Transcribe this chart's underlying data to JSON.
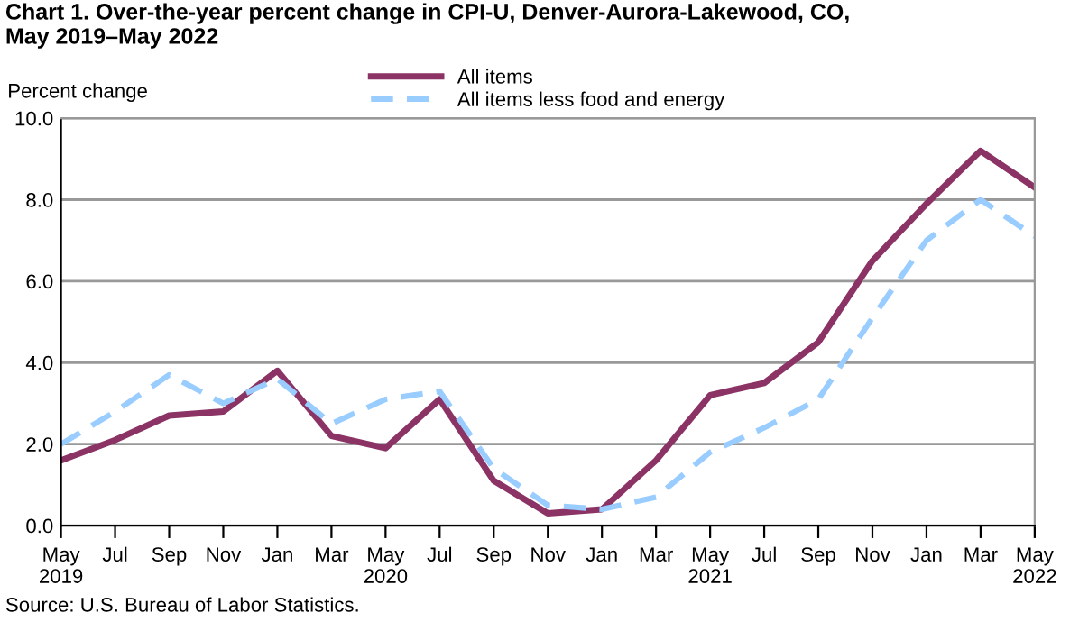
{
  "chart_data": {
    "type": "line",
    "title": "Chart 1. Over-the-year percent change in CPI-U, Denver-Aurora-Lakewood, CO,\nMay 2019–May 2022",
    "ylabel": "Percent change",
    "categories": [
      "May\n2019",
      "Jul",
      "Sep",
      "Nov",
      "Jan",
      "Mar",
      "May\n2020",
      "Jul",
      "Sep",
      "Nov",
      "Jan",
      "Mar",
      "May\n2021",
      "Jul",
      "Sep",
      "Nov",
      "Jan",
      "Mar",
      "May\n2022"
    ],
    "series": [
      {
        "name": "All items",
        "color": "#8b3365",
        "line_style": "solid",
        "values": [
          1.6,
          2.1,
          2.7,
          2.8,
          3.8,
          2.2,
          1.9,
          3.1,
          1.1,
          0.3,
          0.4,
          1.6,
          3.2,
          3.5,
          4.5,
          6.5,
          7.9,
          9.2,
          8.3
        ]
      },
      {
        "name": "All items less food and energy",
        "color": "#99ccff",
        "line_style": "dashed",
        "values": [
          2.0,
          2.8,
          3.7,
          3.0,
          3.6,
          2.5,
          3.1,
          3.3,
          1.4,
          0.5,
          0.4,
          0.7,
          1.8,
          2.4,
          3.1,
          5.1,
          7.0,
          8.0,
          7.1
        ]
      }
    ],
    "ylim": [
      0,
      10
    ],
    "yticks": [
      {
        "value": 0,
        "label": "0.0"
      },
      {
        "value": 2,
        "label": "2.0"
      },
      {
        "value": 4,
        "label": "4.0"
      },
      {
        "value": 6,
        "label": "6.0"
      },
      {
        "value": 8,
        "label": "8.0"
      },
      {
        "value": 10,
        "label": "10.0"
      }
    ],
    "grid": "y",
    "legend": "top",
    "marker": "none",
    "annotations": [
      "Source: U.S. Bureau of Labor Statistics."
    ]
  }
}
